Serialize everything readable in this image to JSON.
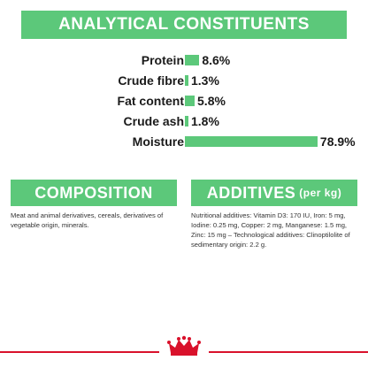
{
  "title": "ANALYTICAL CONSTITUENTS",
  "rows": [
    {
      "label": "Protein",
      "value": "8.6%",
      "percent": 8.6
    },
    {
      "label": "Crude fibre",
      "value": "1.3%",
      "percent": 1.3
    },
    {
      "label": "Fat content",
      "value": "5.8%",
      "percent": 5.8
    },
    {
      "label": "Crude ash",
      "value": "1.8%",
      "percent": 1.8
    },
    {
      "label": "Moisture",
      "value": "78.9%",
      "percent": 78.9
    }
  ],
  "composition": {
    "heading": "COMPOSITION",
    "text": "Meat and animal derivatives, cereals, derivatives of vegetable origin, minerals."
  },
  "additives": {
    "heading": "ADDITIVES",
    "suffix": "(per kg)",
    "text": "Nutritional additives: Vitamin D3: 170 IU, Iron: 5 mg, Iodine: 0.25 mg, Copper: 2 mg, Manganese: 1.5 mg, Zinc: 15 mg – Technological additives: Clinoptilolite of sedimentary origin: 2.2 g."
  },
  "colors": {
    "accent": "#5cc87a",
    "brand_red": "#d9112b"
  },
  "icons": {
    "brand_logo": "crown-logo-icon"
  }
}
